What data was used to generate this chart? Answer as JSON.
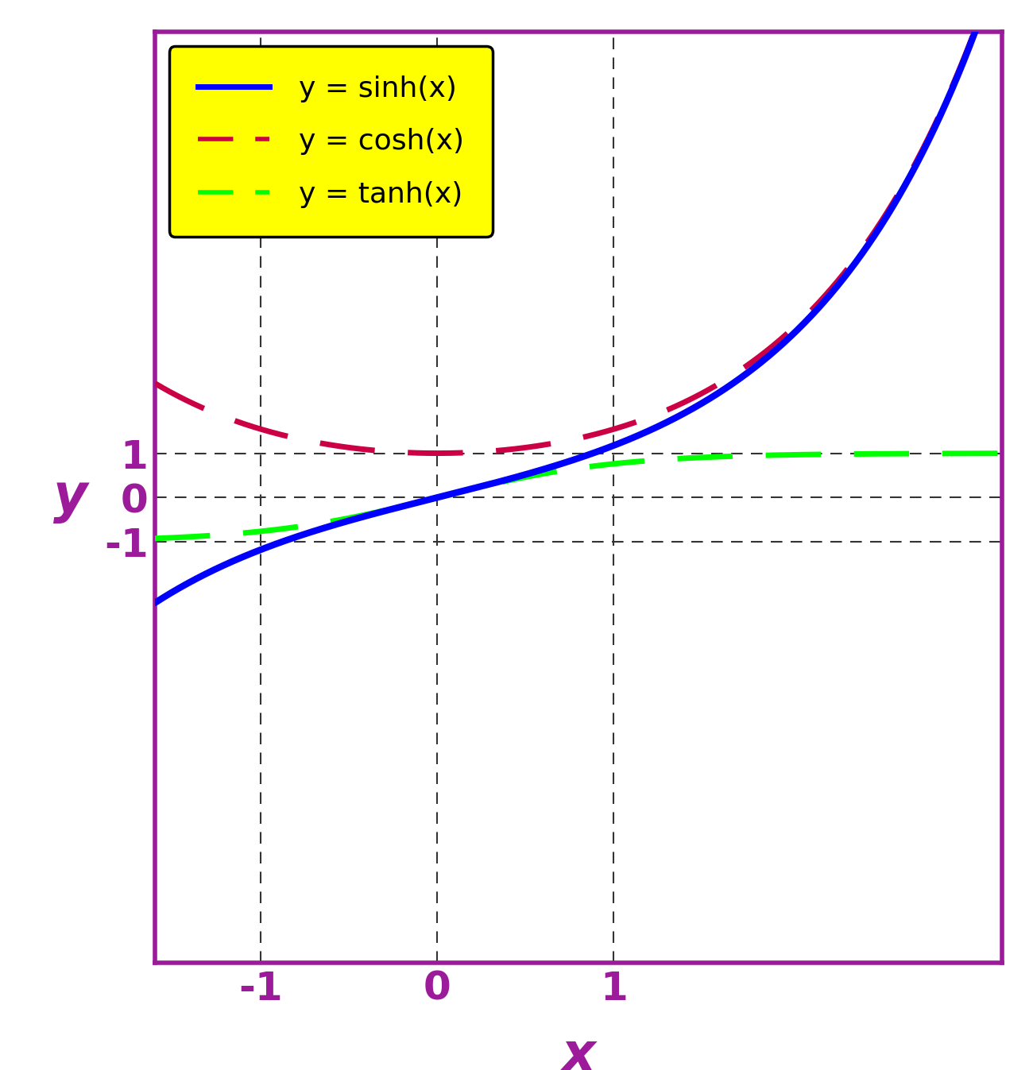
{
  "xlabel": "x",
  "ylabel": "y",
  "xlim": [
    -1.6,
    3.2
  ],
  "ylim": [
    -10.5,
    10.5
  ],
  "xticks": [
    -1,
    0,
    1
  ],
  "yticks": [
    -1,
    0,
    1
  ],
  "sinh_color": "#0000ff",
  "cosh_color": "#cc0044",
  "tanh_color": "#00ff00",
  "border_color": "#9b1b9b",
  "legend_bg": "#ffff00",
  "legend_edge": "#000000",
  "legend_labels": [
    "y = sinh(x)",
    "y = cosh(x)",
    "y = tanh(x)"
  ],
  "grid_color": "#333333",
  "axis_label_color": "#9b1b9b",
  "tick_label_color": "#9b1b9b",
  "sinh_lw": 6,
  "cosh_lw": 5,
  "tanh_lw": 5,
  "xlabel_fontsize": 48,
  "ylabel_fontsize": 48,
  "tick_fontsize": 36,
  "legend_fontsize": 26,
  "spine_lw": 4
}
